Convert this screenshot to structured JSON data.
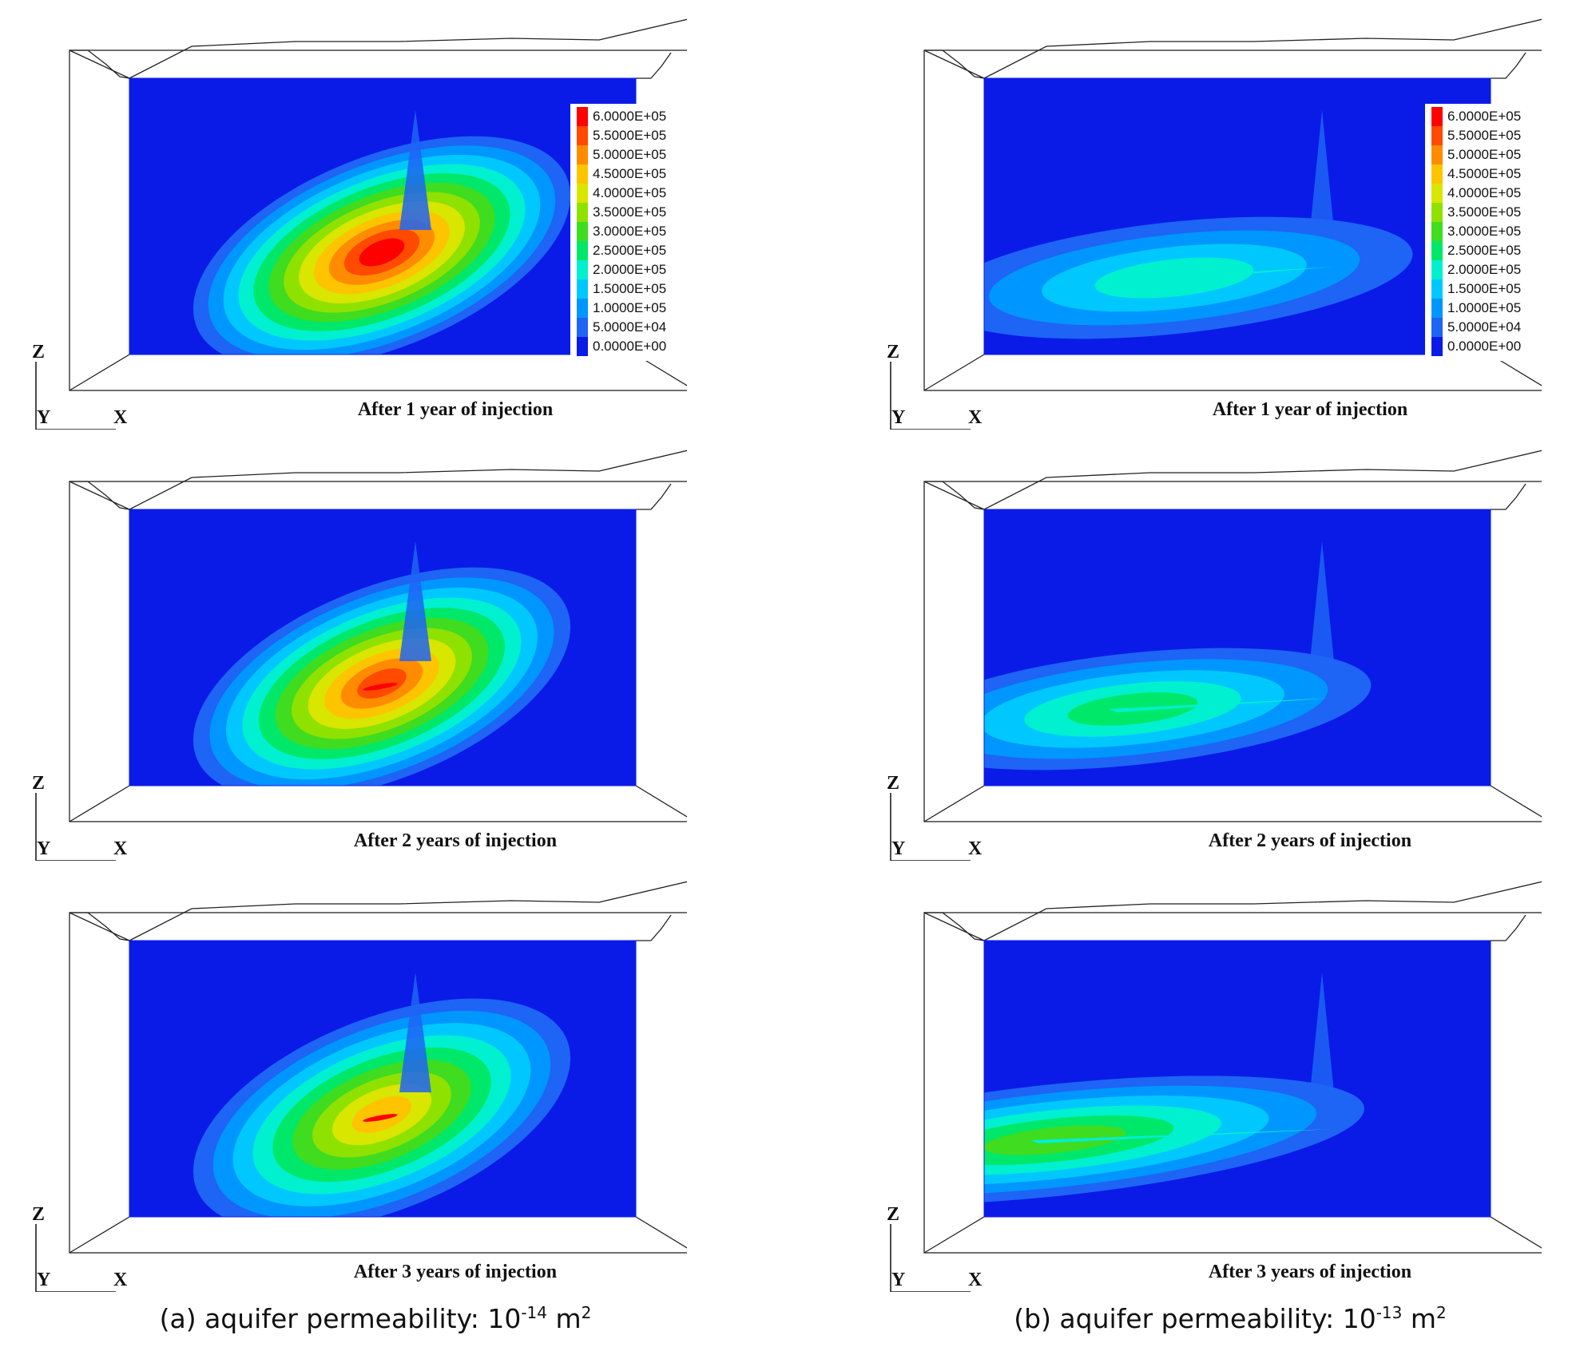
{
  "panels": [
    {
      "id": "a1",
      "column": "a",
      "caption": "After 1 year of injection",
      "plume": "a",
      "strength": 1.0,
      "legend": true
    },
    {
      "id": "a2",
      "column": "a",
      "caption": "After 2 years of injection",
      "plume": "a",
      "strength": 0.85,
      "legend": false
    },
    {
      "id": "a3",
      "column": "a",
      "caption": "After 3 years of injection",
      "plume": "a",
      "strength": 0.65,
      "legend": false
    },
    {
      "id": "b1",
      "column": "b",
      "caption": "After 1 year of injection",
      "plume": "b",
      "strength": 0.35,
      "legend": true
    },
    {
      "id": "b2",
      "column": "b",
      "caption": "After 2 years of injection",
      "plume": "b",
      "strength": 0.45,
      "legend": false
    },
    {
      "id": "b3",
      "column": "b",
      "caption": "After 3 years of injection",
      "plume": "b",
      "strength": 0.55,
      "legend": false
    }
  ],
  "axes": {
    "z": "Z",
    "y": "Y",
    "x": "X"
  },
  "legend": {
    "labels": [
      "6.0000E+05",
      "5.5000E+05",
      "5.0000E+05",
      "4.5000E+05",
      "4.0000E+05",
      "3.5000E+05",
      "3.0000E+05",
      "2.5000E+05",
      "2.0000E+05",
      "1.5000E+05",
      "1.0000E+05",
      "5.0000E+04",
      "0.0000E+00"
    ],
    "colors": [
      "#ff0000",
      "#ff4a00",
      "#ff8c00",
      "#ffc400",
      "#d8e600",
      "#8fe100",
      "#3fdc20",
      "#00e86a",
      "#00f0d0",
      "#00c8ff",
      "#0096ff",
      "#1e64f5",
      "#0a1be8"
    ]
  },
  "column_captions": {
    "a": {
      "prefix": "(a) aquifer permeability: 10",
      "exp": "-14",
      "unit": " m",
      "unit_exp": "2"
    },
    "b": {
      "prefix": "(b) aquifer permeability: 10",
      "exp": "-13",
      "unit": " m",
      "unit_exp": "2"
    }
  }
}
